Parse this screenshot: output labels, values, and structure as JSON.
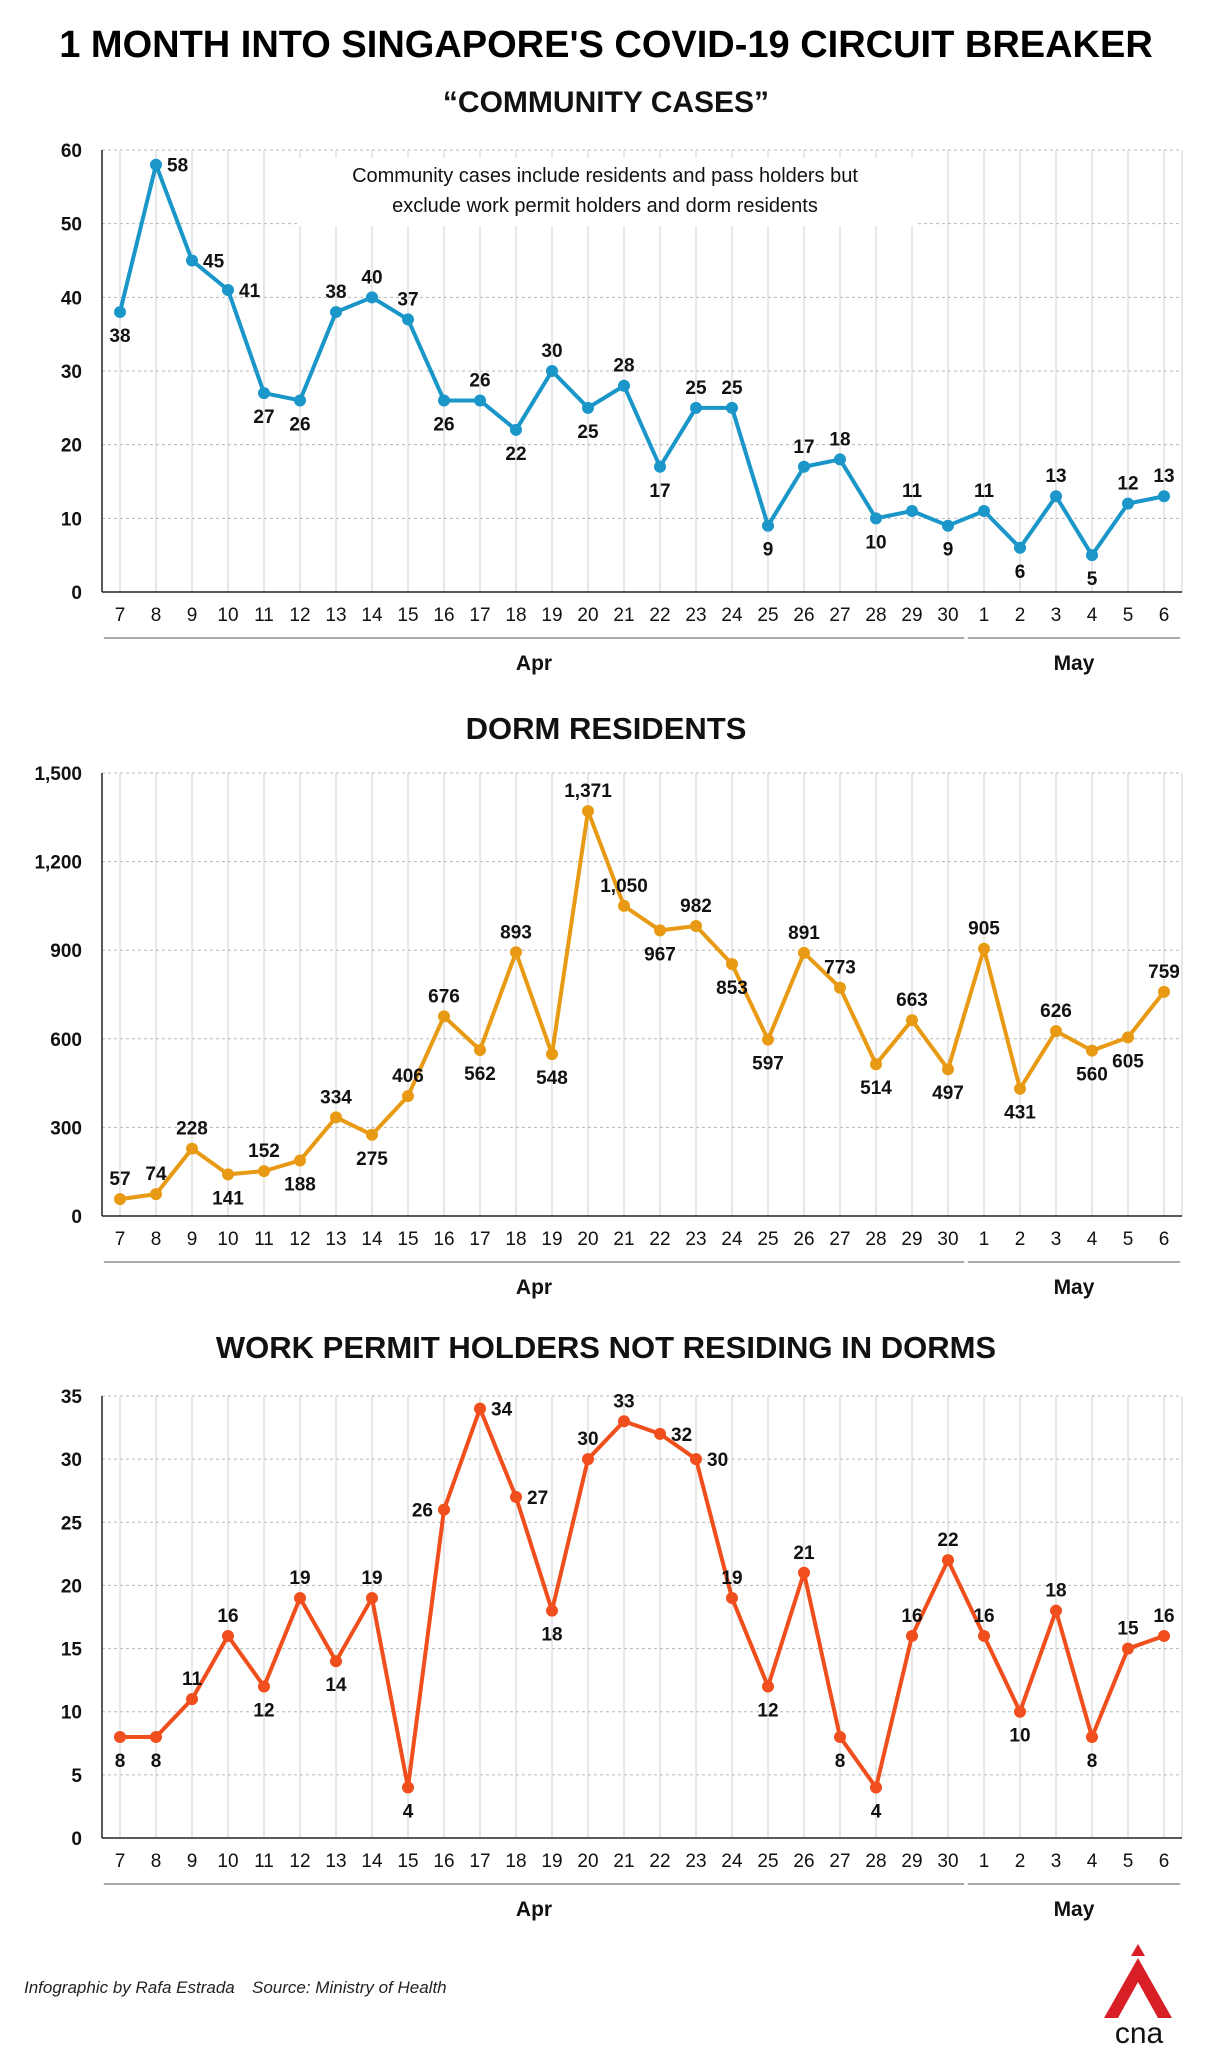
{
  "title": "1 MONTH INTO SINGAPORE'S COVID-19 CIRCUIT BREAKER",
  "footer": {
    "credit": "Infographic by Rafa Estrada",
    "source": "Source: Ministry of Health",
    "logo": "cna"
  },
  "chart_data": [
    {
      "type": "line",
      "title": "“COMMUNITY CASES”",
      "note": [
        "Community cases include residents and pass holders but",
        "exclude work permit holders and dorm residents"
      ],
      "color": "#1a96c9",
      "categories": [
        "7",
        "8",
        "9",
        "10",
        "11",
        "12",
        "13",
        "14",
        "15",
        "16",
        "17",
        "18",
        "19",
        "20",
        "21",
        "22",
        "23",
        "24",
        "25",
        "26",
        "27",
        "28",
        "29",
        "30",
        "1",
        "2",
        "3",
        "4",
        "5",
        "6"
      ],
      "months": [
        {
          "label": "Apr",
          "from": 0,
          "to": 23
        },
        {
          "label": "May",
          "from": 24,
          "to": 29
        }
      ],
      "values": [
        38,
        58,
        45,
        41,
        27,
        26,
        38,
        40,
        37,
        26,
        26,
        22,
        30,
        25,
        28,
        17,
        25,
        25,
        9,
        17,
        18,
        10,
        11,
        9,
        11,
        6,
        13,
        5,
        12,
        13
      ],
      "labels": [
        "38",
        "58",
        "45",
        "41",
        "27",
        "26",
        "38",
        "40",
        "37",
        "26",
        "26",
        "22",
        "30",
        "25",
        "28",
        "17",
        "25",
        "25",
        "9",
        "17",
        "18",
        "10",
        "11",
        "9",
        "11",
        "6",
        "13",
        "5",
        "12",
        "13"
      ],
      "ylim": [
        0,
        60
      ],
      "yticks": [
        0,
        10,
        20,
        30,
        40,
        50,
        60
      ],
      "ytick_labels": [
        "0",
        "10",
        "20",
        "30",
        "40",
        "50",
        "60"
      ],
      "xlabel": "",
      "ylabel": ""
    },
    {
      "type": "line",
      "title": "DORM RESIDENTS",
      "color": "#e89a14",
      "categories": [
        "7",
        "8",
        "9",
        "10",
        "11",
        "12",
        "13",
        "14",
        "15",
        "16",
        "17",
        "18",
        "19",
        "20",
        "21",
        "22",
        "23",
        "24",
        "25",
        "26",
        "27",
        "28",
        "29",
        "30",
        "1",
        "2",
        "3",
        "4",
        "5",
        "6"
      ],
      "months": [
        {
          "label": "Apr",
          "from": 0,
          "to": 23
        },
        {
          "label": "May",
          "from": 24,
          "to": 29
        }
      ],
      "values": [
        57,
        74,
        228,
        141,
        152,
        188,
        334,
        275,
        406,
        676,
        562,
        893,
        548,
        1371,
        1050,
        967,
        982,
        853,
        597,
        891,
        773,
        514,
        663,
        497,
        905,
        431,
        626,
        560,
        605,
        759
      ],
      "labels": [
        "57",
        "74",
        "228",
        "141",
        "152",
        "188",
        "334",
        "275",
        "406",
        "676",
        "562",
        "893",
        "548",
        "1,371",
        "1,050",
        "967",
        "982",
        "853",
        "597",
        "891",
        "773",
        "514",
        "663",
        "497",
        "905",
        "431",
        "626",
        "560",
        "605",
        "759"
      ],
      "ylim": [
        0,
        1500
      ],
      "yticks": [
        0,
        300,
        600,
        900,
        1200,
        1500
      ],
      "ytick_labels": [
        "0",
        "300",
        "600",
        "900",
        "1,200",
        "1,500"
      ],
      "xlabel": "",
      "ylabel": ""
    },
    {
      "type": "line",
      "title": "WORK PERMIT HOLDERS NOT RESIDING IN DORMS",
      "color": "#f04e1c",
      "categories": [
        "7",
        "8",
        "9",
        "10",
        "11",
        "12",
        "13",
        "14",
        "15",
        "16",
        "17",
        "18",
        "19",
        "20",
        "21",
        "22",
        "23",
        "24",
        "25",
        "26",
        "27",
        "28",
        "29",
        "30",
        "1",
        "2",
        "3",
        "4",
        "5",
        "6"
      ],
      "months": [
        {
          "label": "Apr",
          "from": 0,
          "to": 23
        },
        {
          "label": "May",
          "from": 24,
          "to": 29
        }
      ],
      "values": [
        8,
        8,
        11,
        16,
        12,
        19,
        14,
        19,
        4,
        26,
        34,
        27,
        18,
        30,
        33,
        32,
        30,
        19,
        12,
        21,
        8,
        4,
        16,
        22,
        16,
        10,
        18,
        8,
        15,
        16
      ],
      "labels": [
        "8",
        "8",
        "11",
        "16",
        "12",
        "19",
        "14",
        "19",
        "4",
        "26",
        "34",
        "27",
        "18",
        "30",
        "33",
        "32",
        "30",
        "19",
        "12",
        "21",
        "8",
        "4",
        "16",
        "22",
        "16",
        "10",
        "18",
        "8",
        "15",
        "16"
      ],
      "ylim": [
        0,
        35
      ],
      "yticks": [
        0,
        5,
        10,
        15,
        20,
        25,
        30,
        35
      ],
      "ytick_labels": [
        "0",
        "5",
        "10",
        "15",
        "20",
        "25",
        "30",
        "35"
      ],
      "xlabel": "",
      "ylabel": ""
    }
  ]
}
